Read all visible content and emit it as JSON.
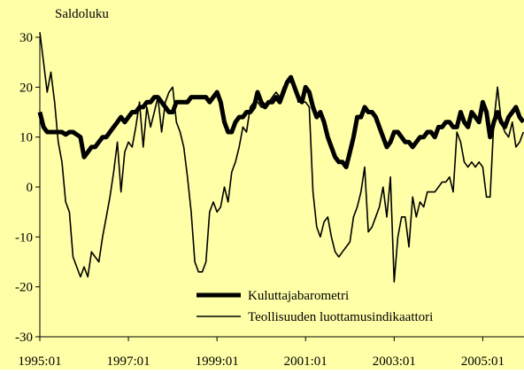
{
  "chart_data": {
    "type": "line",
    "y_label": "Saldoluku",
    "categories": [
      "1995:01",
      null,
      null,
      null,
      null,
      null,
      null,
      null,
      null,
      null,
      null,
      null,
      null,
      null,
      null,
      null,
      null,
      null,
      null,
      null,
      null,
      null,
      null,
      null,
      "1997:01",
      null,
      null,
      null,
      null,
      null,
      null,
      null,
      null,
      null,
      null,
      null,
      null,
      null,
      null,
      null,
      null,
      null,
      null,
      null,
      null,
      null,
      null,
      null,
      "1999:01",
      null,
      null,
      null,
      null,
      null,
      null,
      null,
      null,
      null,
      null,
      null,
      null,
      null,
      null,
      null,
      null,
      null,
      null,
      null,
      null,
      null,
      null,
      null,
      "2001:01",
      null,
      null,
      null,
      null,
      null,
      null,
      null,
      null,
      null,
      null,
      null,
      null,
      null,
      null,
      null,
      null,
      null,
      null,
      null,
      null,
      null,
      null,
      null,
      "2003:01",
      null,
      null,
      null,
      null,
      null,
      null,
      null,
      null,
      null,
      null,
      null,
      null,
      null,
      null,
      null,
      null,
      null,
      null,
      null,
      null,
      null,
      null,
      null,
      "2005:01",
      null,
      null,
      null,
      null,
      null,
      null,
      null,
      null,
      null,
      null,
      null
    ],
    "series": [
      {
        "name": "Kuluttajabarometri",
        "color": "#000000",
        "width": 5,
        "values": [
          15,
          12,
          11,
          11,
          11,
          11,
          11,
          10.5,
          11,
          11,
          10.5,
          10,
          6,
          7,
          8,
          8,
          9,
          10,
          10,
          11,
          12,
          13,
          14,
          13,
          14,
          15,
          15,
          16,
          16,
          17,
          17,
          18,
          18,
          17,
          16,
          15,
          15,
          17,
          17,
          17,
          17,
          18,
          18,
          18,
          18,
          18,
          17,
          18,
          19,
          17,
          13,
          11,
          11,
          13,
          14,
          14,
          15,
          15,
          16,
          19,
          17,
          16,
          17,
          17,
          18,
          17,
          19,
          21,
          22,
          20,
          18,
          17,
          20,
          19,
          16,
          14,
          15,
          13,
          10,
          8,
          6,
          5,
          5,
          4,
          7,
          10,
          14,
          14,
          16,
          15,
          15,
          14,
          12,
          10,
          8,
          9,
          11,
          11,
          10,
          9,
          9,
          8,
          9,
          10,
          10,
          11,
          11,
          10,
          12,
          12,
          13,
          13,
          12,
          12,
          15,
          13,
          12,
          15,
          14,
          13,
          17,
          15,
          10,
          13,
          15,
          13,
          12,
          14,
          15,
          16,
          14,
          13
        ]
      },
      {
        "name": "Teollisuuden luottamusindikaattori",
        "color": "#000000",
        "width": 1.6,
        "values": [
          31,
          25,
          19,
          23,
          17,
          9,
          5,
          -3,
          -5,
          -14,
          -16,
          -18,
          -16,
          -18,
          -13,
          -14,
          -15,
          -10,
          -6,
          -2,
          3,
          9,
          -1,
          7,
          9,
          8,
          12,
          17,
          8,
          16,
          12,
          15,
          18,
          11,
          17,
          19,
          20,
          13,
          11,
          8,
          2,
          -5,
          -15,
          -17,
          -17,
          -15,
          -5,
          -3,
          -5,
          -4,
          0,
          -3,
          3,
          5,
          8,
          12,
          11,
          16,
          17,
          17,
          16,
          16,
          17,
          18,
          19,
          18,
          20,
          21,
          21,
          20,
          17,
          17,
          17,
          16,
          -1,
          -8,
          -10,
          -7,
          -6,
          -10,
          -13,
          -14,
          -13,
          -12,
          -11,
          -6,
          -4,
          -1,
          4,
          -9,
          -8,
          -6,
          -4,
          0,
          -6,
          2,
          -19,
          -10,
          -6,
          -6,
          -12,
          -2,
          -6,
          -3,
          -4,
          -1,
          -1,
          -1,
          0,
          1,
          1,
          2,
          -1,
          11,
          9,
          5,
          4,
          5,
          4,
          5,
          4,
          -2,
          -2,
          13,
          20,
          13,
          11,
          10,
          13,
          8,
          9,
          11
        ]
      }
    ],
    "ylim": [
      -30,
      30
    ],
    "yticks": [
      -30,
      -20,
      -10,
      0,
      10,
      20,
      30
    ],
    "background": "#ffffa8"
  }
}
